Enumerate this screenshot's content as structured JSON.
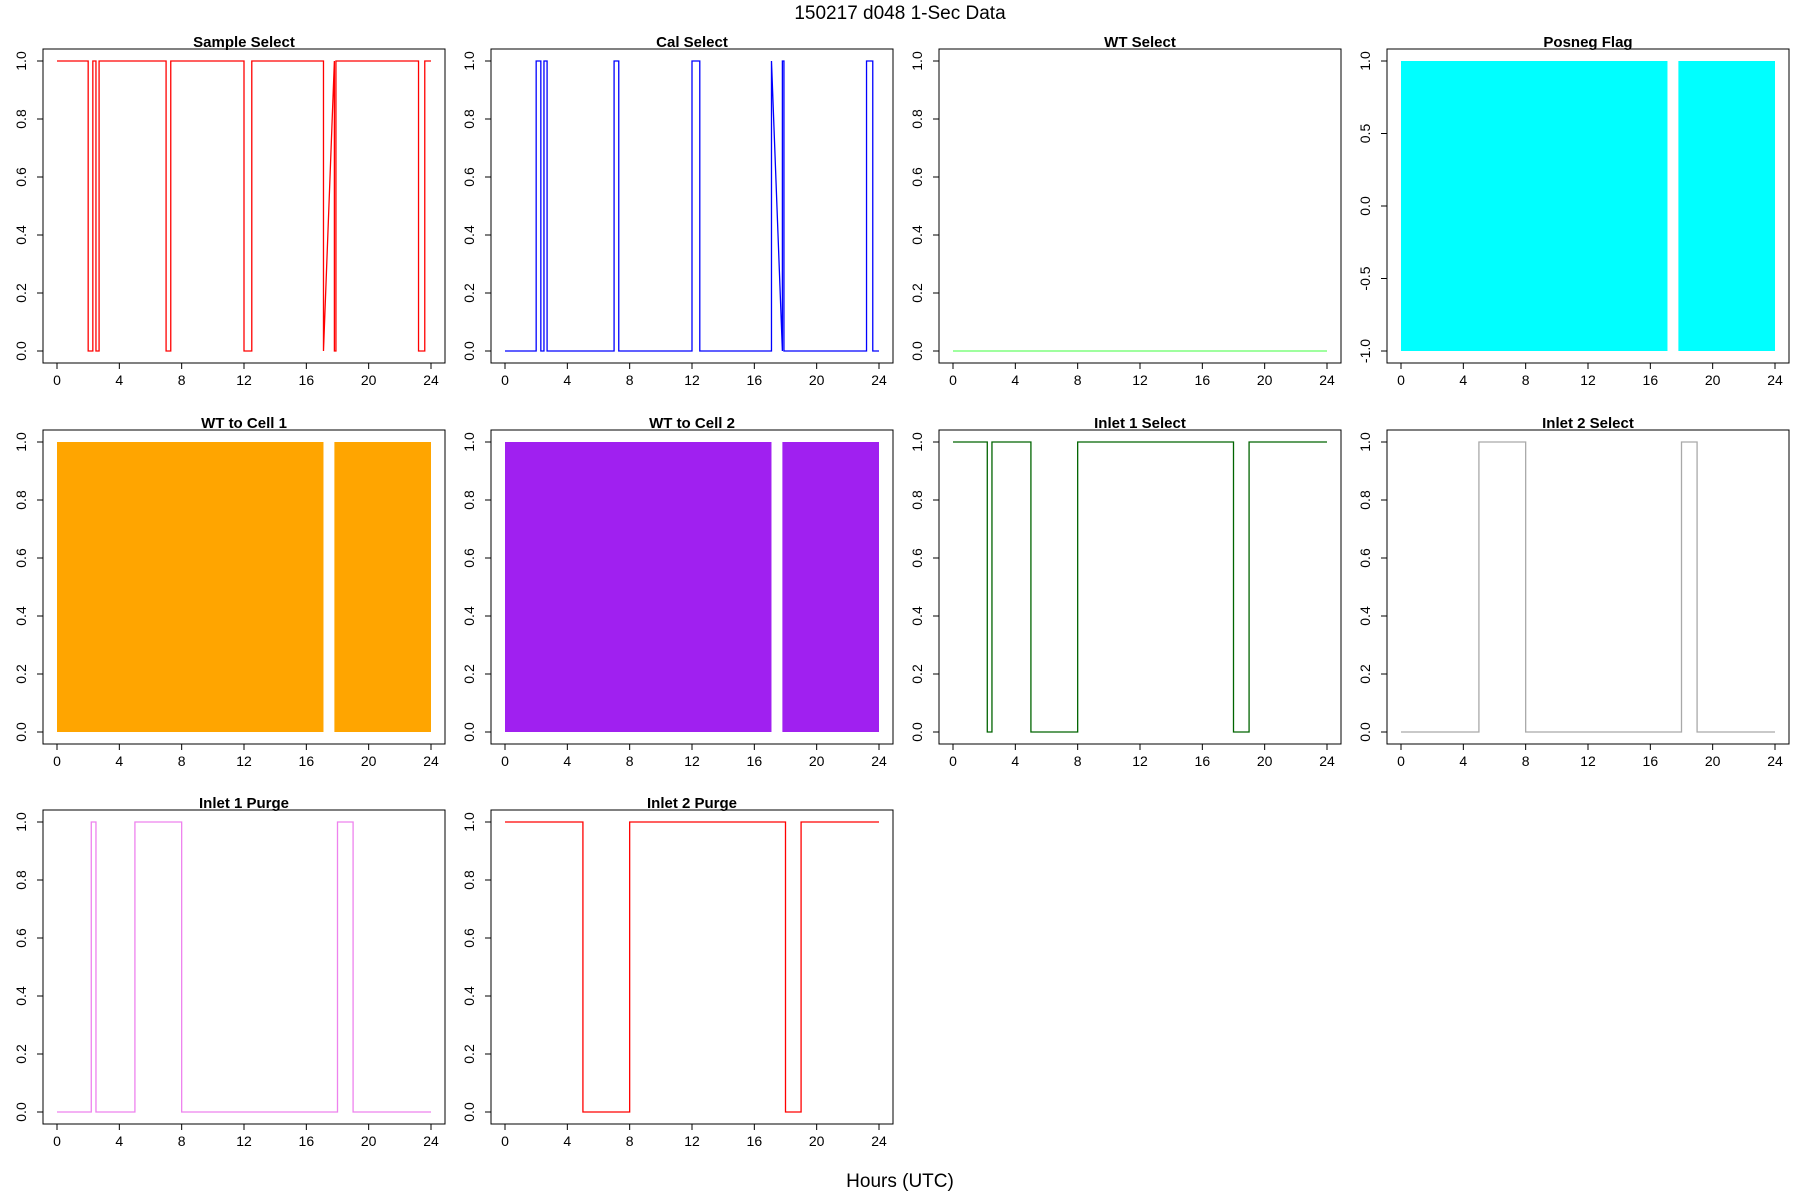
{
  "page_title": "150217   d048   1-Sec Data",
  "xlabel": "Hours (UTC)",
  "chart_data": [
    {
      "type": "line",
      "title": "Sample Select",
      "color": "#ff0000",
      "xlim": [
        0,
        24
      ],
      "ylim": [
        0,
        1
      ],
      "xticks": [
        "0",
        "4",
        "8",
        "12",
        "16",
        "20",
        "24"
      ],
      "yticks": [
        "0.0",
        "0.2",
        "0.4",
        "0.6",
        "0.8",
        "1.0"
      ],
      "series": [
        {
          "x": [
            0,
            2.0,
            2.0,
            2.3,
            2.3,
            2.5,
            2.5,
            2.7,
            2.7,
            7.0,
            7.0,
            7.3,
            7.3,
            12.0,
            12.0,
            12.5,
            12.5,
            17.1,
            17.1,
            17.8,
            17.8,
            17.9,
            17.9,
            23.2,
            23.2,
            23.6,
            23.6,
            24
          ],
          "y": [
            1,
            1,
            0,
            0,
            1,
            1,
            0,
            0,
            1,
            1,
            0,
            0,
            1,
            1,
            0,
            0,
            1,
            1,
            0,
            1,
            0,
            0,
            1,
            1,
            0,
            0,
            1,
            1
          ]
        }
      ]
    },
    {
      "type": "line",
      "title": "Cal Select",
      "color": "#0000ff",
      "xlim": [
        0,
        24
      ],
      "ylim": [
        0,
        1
      ],
      "xticks": [
        "0",
        "4",
        "8",
        "12",
        "16",
        "20",
        "24"
      ],
      "yticks": [
        "0.0",
        "0.2",
        "0.4",
        "0.6",
        "0.8",
        "1.0"
      ],
      "series": [
        {
          "x": [
            0,
            2.0,
            2.0,
            2.3,
            2.3,
            2.5,
            2.5,
            2.7,
            2.7,
            7.0,
            7.0,
            7.3,
            7.3,
            12.0,
            12.0,
            12.5,
            12.5,
            17.1,
            17.1,
            17.8,
            17.8,
            17.9,
            17.9,
            23.2,
            23.2,
            23.6,
            23.6,
            24
          ],
          "y": [
            0,
            0,
            1,
            1,
            0,
            0,
            1,
            1,
            0,
            0,
            1,
            1,
            0,
            0,
            1,
            1,
            0,
            0,
            1,
            0,
            1,
            1,
            0,
            0,
            1,
            1,
            0,
            0
          ]
        }
      ]
    },
    {
      "type": "line",
      "title": "WT Select",
      "color": "#66ff66",
      "xlim": [
        0,
        24
      ],
      "ylim": [
        0,
        1
      ],
      "xticks": [
        "0",
        "4",
        "8",
        "12",
        "16",
        "20",
        "24"
      ],
      "yticks": [
        "0.0",
        "0.2",
        "0.4",
        "0.6",
        "0.8",
        "1.0"
      ],
      "series": [
        {
          "x": [
            0,
            24
          ],
          "y": [
            0,
            0
          ]
        }
      ]
    },
    {
      "type": "area",
      "title": "Posneg Flag",
      "color": "#00ffff",
      "xlim": [
        0,
        24
      ],
      "ylim": [
        -1,
        1
      ],
      "xticks": [
        "0",
        "4",
        "8",
        "12",
        "16",
        "20",
        "24"
      ],
      "yticks": [
        "-1.0",
        "-0.5",
        "0.0",
        "0.5",
        "1.0"
      ],
      "ytick_values": [
        -1,
        -0.5,
        0,
        0.5,
        1
      ],
      "blocks": [
        [
          0,
          17.1
        ],
        [
          17.8,
          24
        ]
      ],
      "block_y": [
        -1,
        1
      ]
    },
    {
      "type": "area",
      "title": "WT to Cell 1",
      "color": "#ffa500",
      "xlim": [
        0,
        24
      ],
      "ylim": [
        0,
        1
      ],
      "xticks": [
        "0",
        "4",
        "8",
        "12",
        "16",
        "20",
        "24"
      ],
      "yticks": [
        "0.0",
        "0.2",
        "0.4",
        "0.6",
        "0.8",
        "1.0"
      ],
      "blocks": [
        [
          0,
          17.1
        ],
        [
          17.8,
          24
        ]
      ],
      "block_y": [
        0,
        1
      ]
    },
    {
      "type": "area",
      "title": "WT to Cell 2",
      "color": "#a020f0",
      "xlim": [
        0,
        24
      ],
      "ylim": [
        0,
        1
      ],
      "xticks": [
        "0",
        "4",
        "8",
        "12",
        "16",
        "20",
        "24"
      ],
      "yticks": [
        "0.0",
        "0.2",
        "0.4",
        "0.6",
        "0.8",
        "1.0"
      ],
      "blocks": [
        [
          0,
          17.1
        ],
        [
          17.8,
          24
        ]
      ],
      "block_y": [
        0,
        1
      ]
    },
    {
      "type": "line",
      "title": "Inlet 1 Select",
      "color": "#006400",
      "xlim": [
        0,
        24
      ],
      "ylim": [
        0,
        1
      ],
      "xticks": [
        "0",
        "4",
        "8",
        "12",
        "16",
        "20",
        "24"
      ],
      "yticks": [
        "0.0",
        "0.2",
        "0.4",
        "0.6",
        "0.8",
        "1.0"
      ],
      "series": [
        {
          "x": [
            0,
            2.2,
            2.2,
            2.5,
            2.5,
            5.0,
            5.0,
            8.0,
            8.0,
            18.0,
            18.0,
            19.0,
            19.0,
            24
          ],
          "y": [
            1,
            1,
            0,
            0,
            1,
            1,
            0,
            0,
            1,
            1,
            0,
            0,
            1,
            1
          ]
        }
      ]
    },
    {
      "type": "line",
      "title": "Inlet 2 Select",
      "color": "#a9a9a9",
      "xlim": [
        0,
        24
      ],
      "ylim": [
        0,
        1
      ],
      "xticks": [
        "0",
        "4",
        "8",
        "12",
        "16",
        "20",
        "24"
      ],
      "yticks": [
        "0.0",
        "0.2",
        "0.4",
        "0.6",
        "0.8",
        "1.0"
      ],
      "series": [
        {
          "x": [
            0,
            5.0,
            5.0,
            8.0,
            8.0,
            18.0,
            18.0,
            19.0,
            19.0,
            24
          ],
          "y": [
            0,
            0,
            1,
            1,
            0,
            0,
            1,
            1,
            0,
            0
          ]
        }
      ]
    },
    {
      "type": "line",
      "title": "Inlet 1 Purge",
      "color": "#ee82ee",
      "xlim": [
        0,
        24
      ],
      "ylim": [
        0,
        1
      ],
      "xticks": [
        "0",
        "4",
        "8",
        "12",
        "16",
        "20",
        "24"
      ],
      "yticks": [
        "0.0",
        "0.2",
        "0.4",
        "0.6",
        "0.8",
        "1.0"
      ],
      "series": [
        {
          "x": [
            0,
            2.2,
            2.2,
            2.5,
            2.5,
            5.0,
            5.0,
            8.0,
            8.0,
            18.0,
            18.0,
            19.0,
            19.0,
            24
          ],
          "y": [
            0,
            0,
            1,
            1,
            0,
            0,
            1,
            1,
            0,
            0,
            1,
            1,
            0,
            0
          ]
        }
      ]
    },
    {
      "type": "line",
      "title": "Inlet 2 Purge",
      "color": "#ff0000",
      "xlim": [
        0,
        24
      ],
      "ylim": [
        0,
        1
      ],
      "xticks": [
        "0",
        "4",
        "8",
        "12",
        "16",
        "20",
        "24"
      ],
      "yticks": [
        "0.0",
        "0.2",
        "0.4",
        "0.6",
        "0.8",
        "1.0"
      ],
      "series": [
        {
          "x": [
            0,
            5.0,
            5.0,
            8.0,
            8.0,
            18.0,
            18.0,
            19.0,
            19.0,
            24
          ],
          "y": [
            1,
            1,
            0,
            0,
            1,
            1,
            0,
            0,
            1,
            1
          ]
        }
      ]
    }
  ]
}
